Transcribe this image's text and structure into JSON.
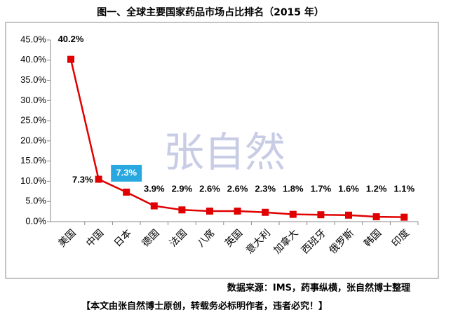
{
  "chart_data": {
    "type": "line",
    "title": "图一、全球主要国家药品市场占比排名（2015 年）",
    "categories": [
      "美国",
      "中国",
      "日本",
      "德国",
      "法国",
      "八席",
      "英国",
      "意大利",
      "加拿大",
      "西班牙",
      "俄罗斯",
      "韩国",
      "印度"
    ],
    "series": [
      {
        "name": "占比",
        "color": "#e00000",
        "values": [
          40.2,
          10.5,
          7.3,
          3.9,
          2.9,
          2.6,
          2.6,
          2.3,
          1.8,
          1.7,
          1.6,
          1.2,
          1.1
        ],
        "value_labels": [
          "40.2%",
          null,
          "7.3%",
          "3.9%",
          "2.9%",
          "2.6%",
          "2.6%",
          "2.3%",
          "1.8%",
          "1.7%",
          "1.6%",
          "1.2%",
          "1.1%"
        ]
      }
    ],
    "annotations": [
      "7.3%"
    ],
    "watermark": "张自然",
    "ylim": [
      0,
      45
    ],
    "yticks": [
      {
        "value": 0,
        "label": "0.0%"
      },
      {
        "value": 5,
        "label": "5.0%"
      },
      {
        "value": 10,
        "label": "10.0%"
      },
      {
        "value": 15,
        "label": "15.0%"
      },
      {
        "value": 20,
        "label": "20.0%"
      },
      {
        "value": 25,
        "label": "25.0%"
      },
      {
        "value": 30,
        "label": "30.0%"
      },
      {
        "value": 35,
        "label": "35.0%"
      },
      {
        "value": 40,
        "label": "40.0%"
      },
      {
        "value": 45,
        "label": "45.0%"
      }
    ],
    "source": "数据来源：IMS，药事纵横，张自然博士整理",
    "footer": "【本文由张自然博士原创，转载务必标明作者，违者必究！】"
  }
}
